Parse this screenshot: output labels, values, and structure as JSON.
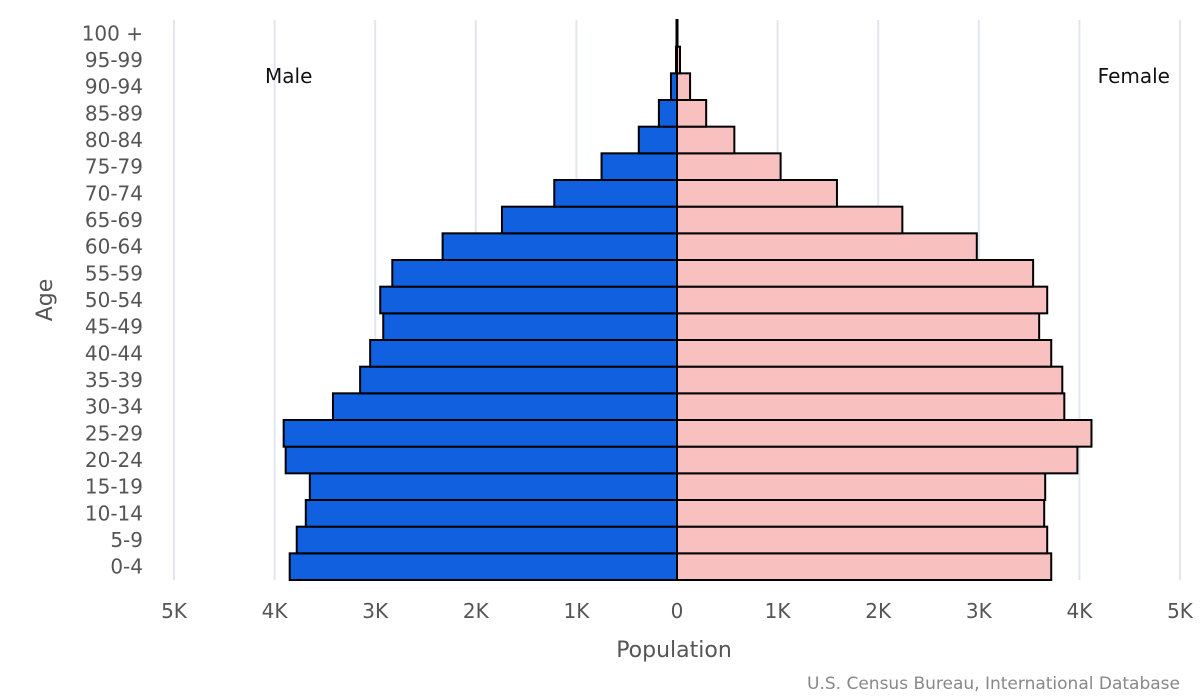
{
  "chart_data": {
    "type": "bar",
    "orientation": "horizontal",
    "subtype": "population-pyramid",
    "title": "",
    "xlabel": "Population",
    "ylabel": "Age",
    "xlim": [
      -5000,
      5000
    ],
    "x_ticks": [
      -5000,
      -4000,
      -3000,
      -2000,
      -1000,
      0,
      1000,
      2000,
      3000,
      4000,
      5000
    ],
    "x_tick_labels": [
      "5K",
      "4K",
      "3K",
      "2K",
      "1K",
      "0",
      "1K",
      "2K",
      "3K",
      "4K",
      "5K"
    ],
    "categories": [
      "0-4",
      "5-9",
      "10-14",
      "15-19",
      "20-24",
      "25-29",
      "30-34",
      "35-39",
      "40-44",
      "45-49",
      "50-54",
      "55-59",
      "60-64",
      "65-69",
      "70-74",
      "75-79",
      "80-84",
      "85-89",
      "90-94",
      "95-99",
      "100 +"
    ],
    "series": [
      {
        "name": "Male",
        "color": "#1060e0",
        "values": [
          3850,
          3780,
          3690,
          3650,
          3890,
          3910,
          3420,
          3150,
          3050,
          2920,
          2950,
          2830,
          2330,
          1740,
          1220,
          750,
          380,
          180,
          60,
          10,
          5
        ]
      },
      {
        "name": "Female",
        "color": "#f9c0c0",
        "values": [
          3720,
          3680,
          3650,
          3660,
          3980,
          4120,
          3850,
          3830,
          3720,
          3600,
          3680,
          3540,
          2980,
          2240,
          1590,
          1030,
          570,
          290,
          130,
          30,
          5
        ]
      }
    ],
    "grid": true,
    "series_label_positions": [
      "top-left",
      "top-right"
    ]
  },
  "credit": "U.S. Census Bureau, International Database"
}
